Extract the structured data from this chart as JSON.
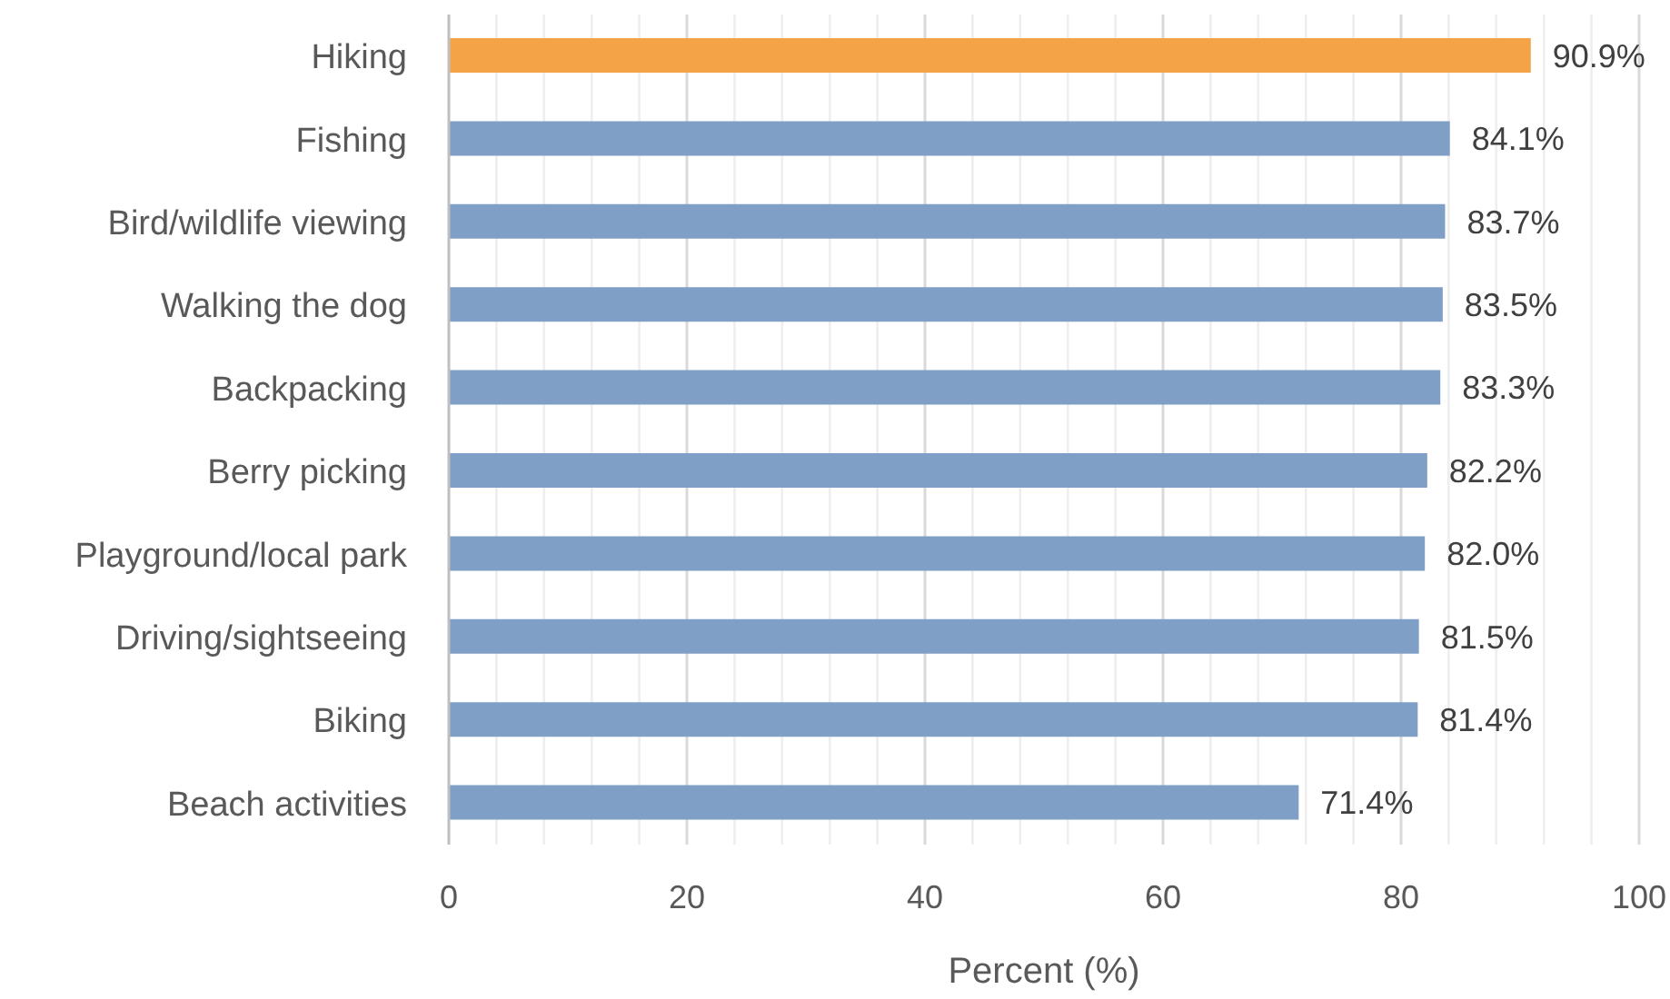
{
  "chart_data": {
    "type": "bar",
    "orientation": "horizontal",
    "xlabel": "Percent (%)",
    "categories": [
      "Hiking",
      "Fishing",
      "Bird/wildlife viewing",
      "Walking the dog",
      "Backpacking",
      "Berry picking",
      "Playground/local park",
      "Driving/sightseeing",
      "Biking",
      "Beach activities"
    ],
    "values": [
      90.9,
      84.1,
      83.7,
      83.5,
      83.3,
      82.2,
      82.0,
      81.5,
      81.4,
      71.4
    ],
    "value_labels": [
      "90.9%",
      "84.1%",
      "83.7%",
      "83.5%",
      "83.3%",
      "82.2%",
      "82.0%",
      "81.5%",
      "81.4%",
      "71.4%"
    ],
    "colors": [
      "#f4a446",
      "#7f9fc6",
      "#7f9fc6",
      "#7f9fc6",
      "#7f9fc6",
      "#7f9fc6",
      "#7f9fc6",
      "#7f9fc6",
      "#7f9fc6",
      "#7f9fc6"
    ],
    "xlim": [
      0,
      100
    ],
    "xticks": [
      0,
      {
        "value": 4,
        "label": null
      },
      {
        "value": 8,
        "label": null
      },
      {
        "value": 12,
        "label": null
      },
      {
        "value": 16,
        "label": null
      },
      20,
      {
        "value": 24,
        "label": null
      },
      {
        "value": 28,
        "label": null
      },
      {
        "value": 32,
        "label": null
      },
      {
        "value": 36,
        "label": null
      },
      40,
      {
        "value": 44,
        "label": null
      },
      {
        "value": 48,
        "label": null
      },
      {
        "value": 52,
        "label": null
      },
      {
        "value": 56,
        "label": null
      },
      60,
      {
        "value": 64,
        "label": null
      },
      {
        "value": 68,
        "label": null
      },
      {
        "value": 72,
        "label": null
      },
      {
        "value": 76,
        "label": null
      },
      80,
      {
        "value": 84,
        "label": null
      },
      {
        "value": 88,
        "label": null
      },
      {
        "value": 92,
        "label": null
      },
      {
        "value": 96,
        "label": null
      },
      100
    ],
    "grid": "x"
  }
}
